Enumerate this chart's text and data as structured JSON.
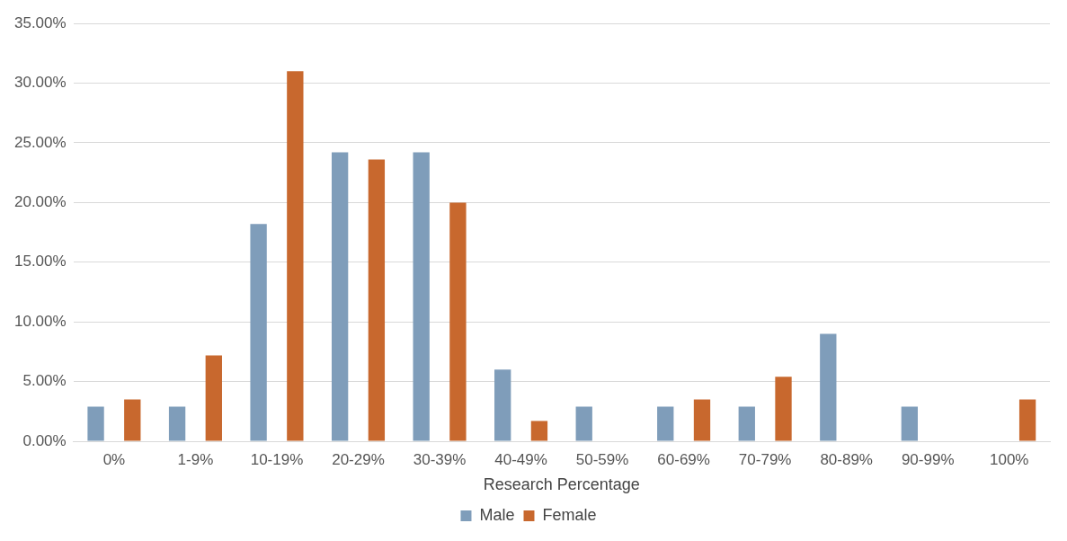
{
  "chart_data": {
    "type": "bar",
    "xlabel": "Research Percentage",
    "categories": [
      "0%",
      "1-9%",
      "10-19%",
      "20-29%",
      "30-39%",
      "40-49%",
      "50-59%",
      "60-69%",
      "70-79%",
      "80-89%",
      "90-99%",
      "100%"
    ],
    "series": [
      {
        "name": "Male",
        "color": "#7f9dba",
        "values": [
          2.9,
          2.9,
          18.2,
          24.2,
          24.2,
          6.0,
          2.9,
          2.9,
          2.9,
          9.0,
          2.9,
          0
        ]
      },
      {
        "name": "Female",
        "color": "#c8682e",
        "values": [
          3.5,
          7.2,
          31.0,
          23.6,
          20.0,
          1.7,
          0,
          3.5,
          5.4,
          0,
          0,
          3.5
        ]
      }
    ],
    "ylim": [
      0,
      35
    ],
    "yticks": [
      {
        "value": 0,
        "label": "0.00%"
      },
      {
        "value": 5,
        "label": "5.00%"
      },
      {
        "value": 10,
        "label": "10.00%"
      },
      {
        "value": 15,
        "label": "15.00%"
      },
      {
        "value": 20,
        "label": "20.00%"
      },
      {
        "value": 25,
        "label": "25.00%"
      },
      {
        "value": 30,
        "label": "30.00%"
      },
      {
        "value": 35,
        "label": "35.00%"
      }
    ],
    "grid": "y",
    "legend": "bottom"
  }
}
